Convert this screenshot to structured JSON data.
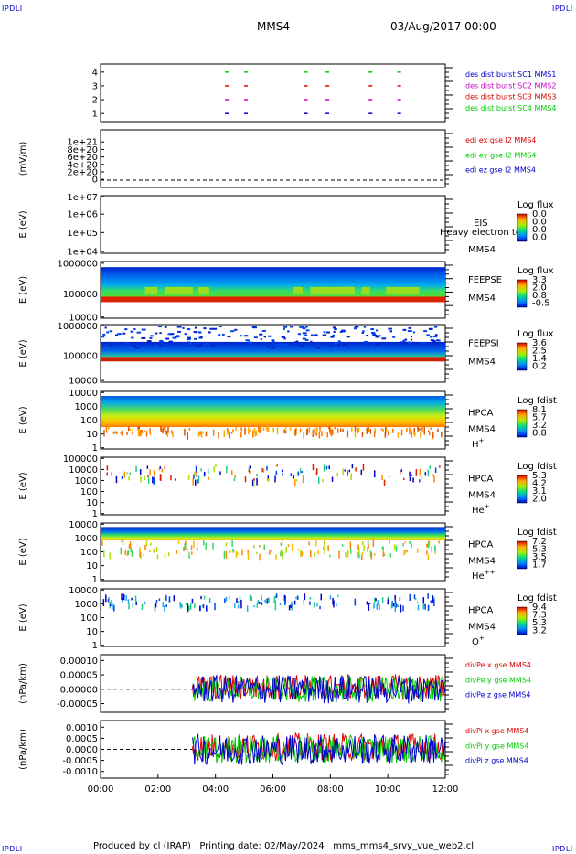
{
  "corners": {
    "tl": "IPDLI",
    "tr": "IPDLI",
    "bl": "IPDLI",
    "br": "IPDLI"
  },
  "header": {
    "spacecraft": "MMS4",
    "date": "03/Aug/2017 00:00"
  },
  "footer": {
    "text": "Produced by cl (IRAP)   Printing date: 02/May/2024   mms_mms4_srvy_vue_web2.cl"
  },
  "colors": {
    "blue": "#0000cc",
    "green": "#00cc00",
    "red": "#dd0000",
    "magenta": "#cc00cc"
  },
  "x_axis": {
    "ticks": [
      "00:00",
      "02:00",
      "04:00",
      "06:00",
      "08:00",
      "10:00",
      "12:00"
    ]
  },
  "chart_data": [
    {
      "type": "scatter",
      "id": "des_burst",
      "ylabel": "",
      "yticks": [
        "1",
        "2",
        "3",
        "4"
      ],
      "legend": [
        {
          "text": "des dist burst SC1 MMS1",
          "color": "#0000cc"
        },
        {
          "text": "des dist burst SC2 MMS2",
          "color": "#cc00cc"
        },
        {
          "text": "des dist burst SC3 MMS3",
          "color": "#dd0000"
        },
        {
          "text": "des dist burst SC4 MMS4",
          "color": "#00cc00"
        }
      ],
      "x": [
        "04:20",
        "05:00",
        "07:05",
        "07:50",
        "09:20",
        "10:20"
      ],
      "series": [
        {
          "name": "des dist burst SC1 MMS1",
          "y": 1
        },
        {
          "name": "des dist burst SC2 MMS2",
          "y": 2
        },
        {
          "name": "des dist burst SC3 MMS3",
          "y": 3
        },
        {
          "name": "des dist burst SC4 MMS4",
          "y": 4
        }
      ]
    },
    {
      "type": "line",
      "id": "edi",
      "ylabel": "(mV/m)",
      "yticks": [
        "0",
        "2e+20",
        "4e+20",
        "6e+20",
        "8e+20",
        "1e+21"
      ],
      "legend": [
        {
          "text": "edi ex gse l2 MMS4",
          "color": "#dd0000"
        },
        {
          "text": "edi ey gse l2 MMS4",
          "color": "#00cc00"
        },
        {
          "text": "edi ez gse l2 MMS4",
          "color": "#0000cc"
        }
      ]
    },
    {
      "type": "heatmap",
      "id": "eis",
      "ylabel": "E (eV)",
      "yticks": [
        "1e+04",
        "1e+05",
        "1e+06",
        "1e+07"
      ],
      "inst": [
        "EIS",
        "MMS4"
      ],
      "overlay": "Heavy electron to",
      "colorbar": {
        "title": "Log flux",
        "ticks": [
          "0.0",
          "0.0",
          "0.0",
          "0.0"
        ]
      }
    },
    {
      "type": "heatmap",
      "id": "feepse",
      "ylabel": "E (eV)",
      "yticks": [
        "10000",
        "100000",
        "1000000"
      ],
      "inst": [
        "FEEPSE",
        "MMS4"
      ],
      "colorbar": {
        "title": "Log flux",
        "ticks": [
          "3.3",
          "2.0",
          "0.8",
          "-0.5"
        ]
      }
    },
    {
      "type": "heatmap",
      "id": "feepsi",
      "ylabel": "E (eV)",
      "yticks": [
        "10000",
        "100000",
        "1000000"
      ],
      "inst": [
        "FEEPSI",
        "MMS4"
      ],
      "colorbar": {
        "title": "Log flux",
        "ticks": [
          "3.6",
          "2.5",
          "1.4",
          "0.2"
        ]
      }
    },
    {
      "type": "heatmap",
      "id": "hpca_h",
      "ylabel": "E (eV)",
      "yticks": [
        "1",
        "10",
        "100",
        "1000",
        "10000"
      ],
      "inst": [
        "HPCA",
        "MMS4"
      ],
      "species": "H",
      "charge": "+",
      "colorbar": {
        "title": "Log fdist",
        "ticks": [
          "8.1",
          "5.7",
          "3.2",
          "0.8"
        ]
      }
    },
    {
      "type": "heatmap",
      "id": "hpca_he1",
      "ylabel": "E (eV)",
      "yticks": [
        "1",
        "10",
        "100",
        "1000",
        "10000",
        "100000"
      ],
      "inst": [
        "HPCA",
        "MMS4"
      ],
      "species": "He",
      "charge": "+",
      "colorbar": {
        "title": "Log fdist",
        "ticks": [
          "5.3",
          "4.2",
          "3.1",
          "2.0"
        ]
      }
    },
    {
      "type": "heatmap",
      "id": "hpca_he2",
      "ylabel": "E (eV)",
      "yticks": [
        "1",
        "10",
        "100",
        "1000",
        "10000"
      ],
      "inst": [
        "HPCA",
        "MMS4"
      ],
      "species": "He",
      "charge": "++",
      "colorbar": {
        "title": "Log fdist",
        "ticks": [
          "7.2",
          "5.3",
          "3.5",
          "1.7"
        ]
      }
    },
    {
      "type": "heatmap",
      "id": "hpca_o",
      "ylabel": "E (eV)",
      "yticks": [
        "1",
        "10",
        "100",
        "1000",
        "10000"
      ],
      "inst": [
        "HPCA",
        "MMS4"
      ],
      "species": "O",
      "charge": "+",
      "colorbar": {
        "title": "Log fdist",
        "ticks": [
          "9.4",
          "7.3",
          "5.3",
          "3.2"
        ]
      }
    },
    {
      "type": "line",
      "id": "divpe",
      "ylabel": "(nPa/km)",
      "yticks": [
        "-0.00005",
        "0.00000",
        "0.00005",
        "0.00010"
      ],
      "ylim": [
        -8e-05,
        0.00012
      ],
      "legend": [
        {
          "text": "divPe x gse MMS4",
          "color": "#dd0000"
        },
        {
          "text": "divPe y gse MMS4",
          "color": "#00cc00"
        },
        {
          "text": "divPe z gse MMS4",
          "color": "#0000cc"
        }
      ]
    },
    {
      "type": "line",
      "id": "divpi",
      "ylabel": "(nPa/km)",
      "yticks": [
        "-0.0010",
        "-0.0005",
        "0.0000",
        "0.0005",
        "0.0010"
      ],
      "ylim": [
        -0.0013,
        0.0013
      ],
      "legend": [
        {
          "text": "divPi x gse MMS4",
          "color": "#dd0000"
        },
        {
          "text": "divPi y gse MMS4",
          "color": "#00cc00"
        },
        {
          "text": "divPi z gse MMS4",
          "color": "#0000cc"
        }
      ]
    }
  ]
}
